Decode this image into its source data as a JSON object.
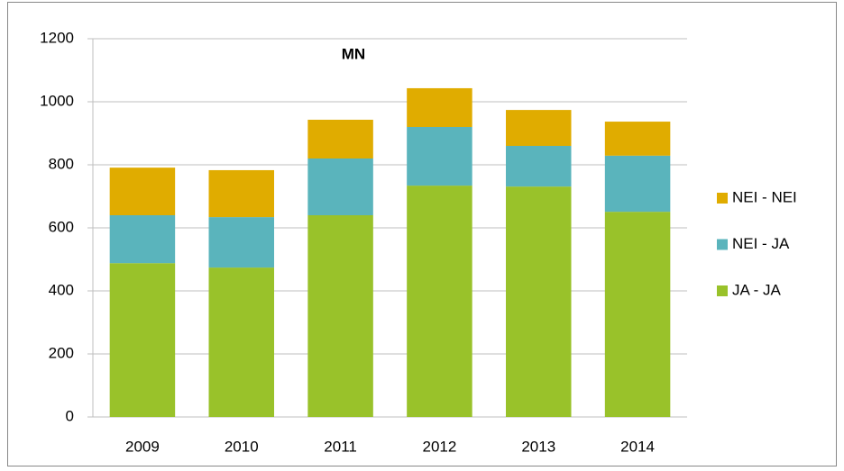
{
  "chart_data": {
    "type": "stacked_bar",
    "title": "MN",
    "categories": [
      "2009",
      "2010",
      "2011",
      "2012",
      "2013",
      "2014"
    ],
    "series": [
      {
        "name": "JA - JA",
        "color": "#99c22a",
        "values": [
          488,
          474,
          640,
          734,
          731,
          651
        ]
      },
      {
        "name": "NEI - JA",
        "color": "#5ab4bc",
        "values": [
          152,
          160,
          180,
          186,
          129,
          178
        ]
      },
      {
        "name": "NEI - NEI",
        "color": "#e0ac00",
        "values": [
          151,
          149,
          123,
          123,
          114,
          108
        ]
      }
    ],
    "ylim": [
      0,
      1200
    ],
    "yticks": [
      0,
      200,
      400,
      600,
      800,
      1000,
      1200
    ],
    "grid": true
  }
}
